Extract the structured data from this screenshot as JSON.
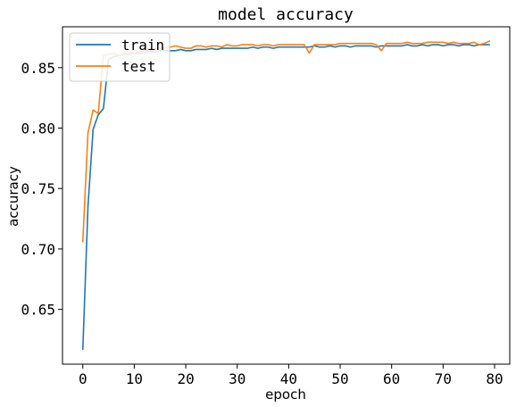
{
  "chart_data": {
    "type": "line",
    "title": "model accuracy",
    "xlabel": "epoch",
    "ylabel": "accuracy",
    "xlim": [
      -3.95,
      82.95
    ],
    "ylim": [
      0.6047,
      0.8838
    ],
    "xticks": [
      0,
      10,
      20,
      30,
      40,
      50,
      60,
      70,
      80
    ],
    "yticks": [
      0.65,
      0.7,
      0.75,
      0.8,
      0.85
    ],
    "ytick_labels": [
      "0.65",
      "0.70",
      "0.75",
      "0.80",
      "0.85"
    ],
    "legend": "top-left",
    "grid": false,
    "series": [
      {
        "name": "train",
        "color": "#1f77b4",
        "x": [
          0,
          1,
          2,
          3,
          4,
          5,
          6,
          7,
          8,
          9,
          10,
          11,
          12,
          13,
          14,
          15,
          16,
          17,
          18,
          19,
          20,
          21,
          22,
          23,
          24,
          25,
          26,
          27,
          28,
          29,
          30,
          31,
          32,
          33,
          34,
          35,
          36,
          37,
          38,
          39,
          40,
          41,
          42,
          43,
          44,
          45,
          46,
          47,
          48,
          49,
          50,
          51,
          52,
          53,
          54,
          55,
          56,
          57,
          58,
          59,
          60,
          61,
          62,
          63,
          64,
          65,
          66,
          67,
          68,
          69,
          70,
          71,
          72,
          73,
          74,
          75,
          76,
          77,
          78,
          79
        ],
        "values": [
          0.617,
          0.735,
          0.799,
          0.811,
          0.816,
          0.857,
          0.859,
          0.86,
          0.861,
          0.861,
          0.862,
          0.862,
          0.863,
          0.863,
          0.863,
          0.864,
          0.864,
          0.864,
          0.864,
          0.865,
          0.864,
          0.864,
          0.865,
          0.865,
          0.865,
          0.866,
          0.865,
          0.866,
          0.866,
          0.866,
          0.866,
          0.866,
          0.866,
          0.867,
          0.866,
          0.867,
          0.867,
          0.866,
          0.867,
          0.867,
          0.867,
          0.867,
          0.867,
          0.867,
          0.867,
          0.868,
          0.867,
          0.867,
          0.868,
          0.867,
          0.868,
          0.868,
          0.867,
          0.868,
          0.868,
          0.868,
          0.868,
          0.867,
          0.868,
          0.868,
          0.868,
          0.868,
          0.868,
          0.869,
          0.868,
          0.868,
          0.869,
          0.868,
          0.869,
          0.869,
          0.868,
          0.869,
          0.869,
          0.868,
          0.869,
          0.869,
          0.868,
          0.869,
          0.869,
          0.869
        ]
      },
      {
        "name": "test",
        "color": "#ff7f0e",
        "x": [
          0,
          1,
          2,
          3,
          4,
          5,
          6,
          7,
          8,
          9,
          10,
          11,
          12,
          13,
          14,
          15,
          16,
          17,
          18,
          19,
          20,
          21,
          22,
          23,
          24,
          25,
          26,
          27,
          28,
          29,
          30,
          31,
          32,
          33,
          34,
          35,
          36,
          37,
          38,
          39,
          40,
          41,
          42,
          43,
          44,
          45,
          46,
          47,
          48,
          49,
          50,
          51,
          52,
          53,
          54,
          55,
          56,
          57,
          58,
          59,
          60,
          61,
          62,
          63,
          64,
          65,
          66,
          67,
          68,
          69,
          70,
          71,
          72,
          73,
          74,
          75,
          76,
          77,
          78,
          79
        ],
        "values": [
          0.706,
          0.796,
          0.815,
          0.812,
          0.86,
          0.861,
          0.862,
          0.86,
          0.862,
          0.863,
          0.862,
          0.863,
          0.864,
          0.864,
          0.865,
          0.866,
          0.866,
          0.867,
          0.868,
          0.867,
          0.866,
          0.866,
          0.868,
          0.868,
          0.867,
          0.868,
          0.868,
          0.867,
          0.869,
          0.868,
          0.868,
          0.869,
          0.869,
          0.869,
          0.868,
          0.869,
          0.869,
          0.868,
          0.869,
          0.869,
          0.869,
          0.869,
          0.869,
          0.869,
          0.862,
          0.869,
          0.869,
          0.869,
          0.869,
          0.869,
          0.87,
          0.87,
          0.87,
          0.87,
          0.87,
          0.87,
          0.87,
          0.869,
          0.864,
          0.87,
          0.87,
          0.87,
          0.87,
          0.871,
          0.87,
          0.87,
          0.87,
          0.871,
          0.871,
          0.871,
          0.871,
          0.87,
          0.871,
          0.87,
          0.87,
          0.87,
          0.871,
          0.869,
          0.87,
          0.872
        ]
      }
    ]
  }
}
